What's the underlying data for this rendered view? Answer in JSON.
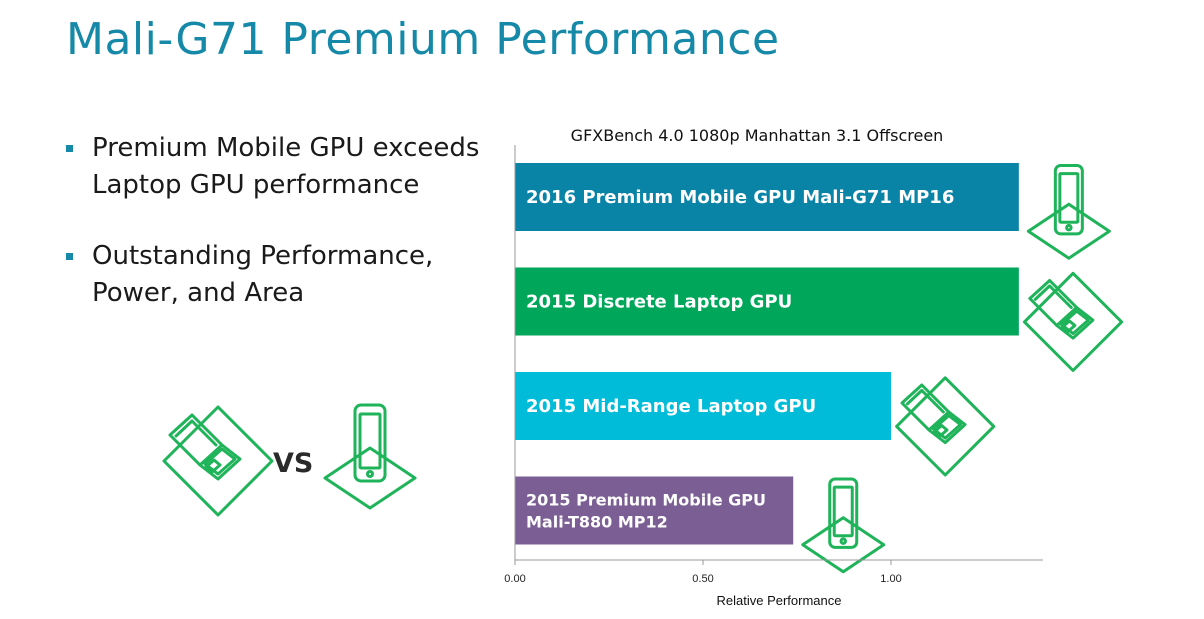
{
  "slide": {
    "title": "Mali-G71 Premium Performance",
    "bullets": [
      "Premium Mobile GPU exceeds Laptop GPU performance",
      "Outstanding Performance, Power, and Area"
    ],
    "vs_label": "VS",
    "icons": [
      "laptop-icon",
      "phone-icon"
    ],
    "icon_color": "#1fb35a"
  },
  "chart_data": {
    "type": "bar",
    "orientation": "horizontal",
    "title": "GFXBench 4.0 1080p Manhattan 3.1 Offscreen",
    "xlabel": "Relative Performance",
    "ylabel": "",
    "xlim": [
      0,
      1.4
    ],
    "xticks": [
      0,
      0.5,
      1.0
    ],
    "xtick_labels": [
      "0.00",
      "0.50",
      "1.00"
    ],
    "grid": false,
    "categories": [
      "2016 Premium Mobile GPU Mali-G71 MP16",
      "2015 Discrete Laptop GPU",
      "2015 Mid-Range Laptop GPU",
      "2015 Premium Mobile GPU Mali-T880 MP12"
    ],
    "category_lines": [
      [
        "2016 Premium Mobile GPU Mali-G71 MP16"
      ],
      [
        "2015 Discrete Laptop GPU"
      ],
      [
        "2015 Mid-Range Laptop GPU"
      ],
      [
        "2015 Premium Mobile GPU",
        "Mali-T880 MP12"
      ]
    ],
    "values": [
      1.34,
      1.34,
      1.0,
      0.74
    ],
    "colors": [
      "#0a84a6",
      "#00a65a",
      "#00bcd9",
      "#7b5f94"
    ],
    "bar_icons": [
      "phone-icon",
      "laptop-icon",
      "laptop-icon",
      "phone-icon"
    ]
  }
}
